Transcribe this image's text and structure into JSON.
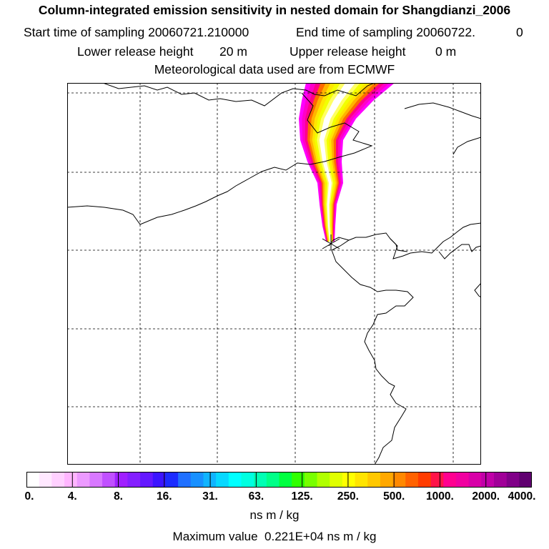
{
  "header": {
    "title": "Column-integrated emission sensitivity in nested domain for Shangdianzi_2006",
    "start_label": "Start time of sampling 20060721.210000",
    "end_label": "End time of sampling 20060722.",
    "end_suffix": "0",
    "lower_label": "Lower release height",
    "lower_value": "20 m",
    "upper_label": "Upper release height",
    "upper_value": "0 m",
    "met_source": "Meteorological data used are from ECMWF"
  },
  "colorbar": {
    "ticks": [
      "0.",
      "4.",
      "8.",
      "16.",
      "31.",
      "63.",
      "125.",
      "250.",
      "500.",
      "1000.",
      "2000.",
      "4000."
    ],
    "units": "ns m / kg",
    "colors": [
      "#ffffff",
      "#ffe8ff",
      "#ffd0ff",
      "#ffb5ff",
      "#ec9aff",
      "#d878ff",
      "#c050ff",
      "#a020ff",
      "#8420ff",
      "#6418ff",
      "#3c14ff",
      "#1c2cff",
      "#2070ff",
      "#1890ff",
      "#10b4ff",
      "#08d8ff",
      "#00ffff",
      "#00ffe0",
      "#00ffb4",
      "#00ff88",
      "#00ff40",
      "#30ff00",
      "#78ff00",
      "#b0ff00",
      "#e0ff00",
      "#ffff00",
      "#ffe400",
      "#ffc800",
      "#ffa800",
      "#ff8800",
      "#ff6200",
      "#ff3c00",
      "#ff1448",
      "#ff0090",
      "#f000a0",
      "#d800a8",
      "#c000a8",
      "#a00098",
      "#800088",
      "#600070"
    ]
  },
  "footer": {
    "max_label": "Maximum value",
    "max_value": "0.221E+04 ns m / kg"
  },
  "map": {
    "receptor": "Shangdianzi",
    "plume_colors": [
      "#ff00ff",
      "#ff00c8",
      "#ff0088",
      "#ff6a00",
      "#ffb400",
      "#ffe600",
      "#f2ff00",
      "#ffff64",
      "#ffffff"
    ]
  }
}
